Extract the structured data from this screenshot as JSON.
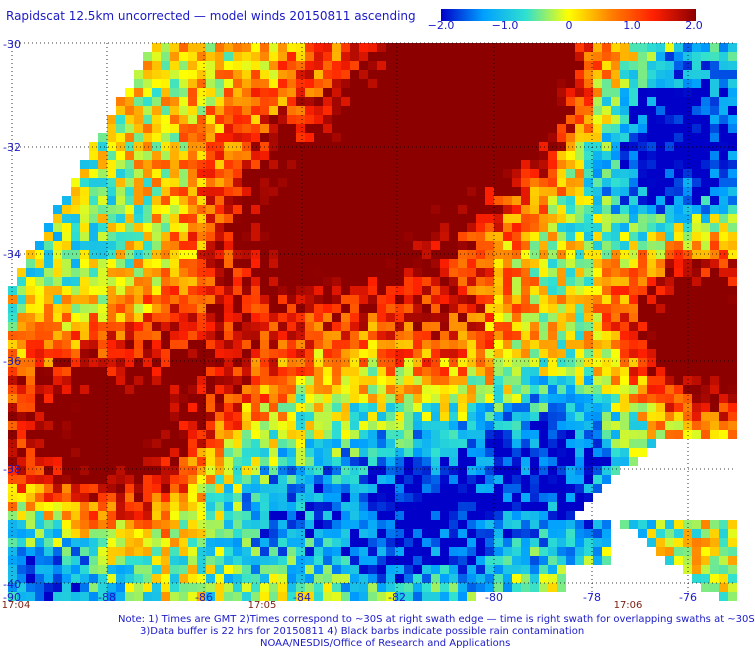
{
  "title": "Rapidscat 12.5km uncorrected — model winds 20150811 ascending",
  "colorbar": {
    "ticks": [
      "−2.0",
      "−1.0",
      "0",
      "1.0",
      "2.0"
    ],
    "range": [
      -2.0,
      2.0
    ],
    "colors": [
      "#0000c8",
      "#00a0ff",
      "#30e0d0",
      "#ffff00",
      "#ff8000",
      "#ff2000",
      "#8c0000"
    ]
  },
  "axes": {
    "lat_labels": [
      "-30",
      "-32",
      "-34",
      "-36",
      "-38",
      "-40"
    ],
    "lon_labels": [
      "-90",
      "-88",
      "-86",
      "-84",
      "-82",
      "-80",
      "-78",
      "-76"
    ],
    "lat_range": [
      -40,
      -30
    ],
    "lon_range": [
      -90,
      -75.1
    ],
    "grid": true
  },
  "swath_times": [
    "17:04",
    "17:05",
    "17:06"
  ],
  "notes": {
    "line1": "Note: 1) Times are GMT 2)Times correspond to ~30S at right swath edge — time is right swath for overlapping swaths at ~30S",
    "line2": "3)Data buffer is 22 hrs for 20150811 4) Black barbs indicate possible rain contamination",
    "line3": "NOAA/NESDIS/Office of Research and Applications"
  }
}
